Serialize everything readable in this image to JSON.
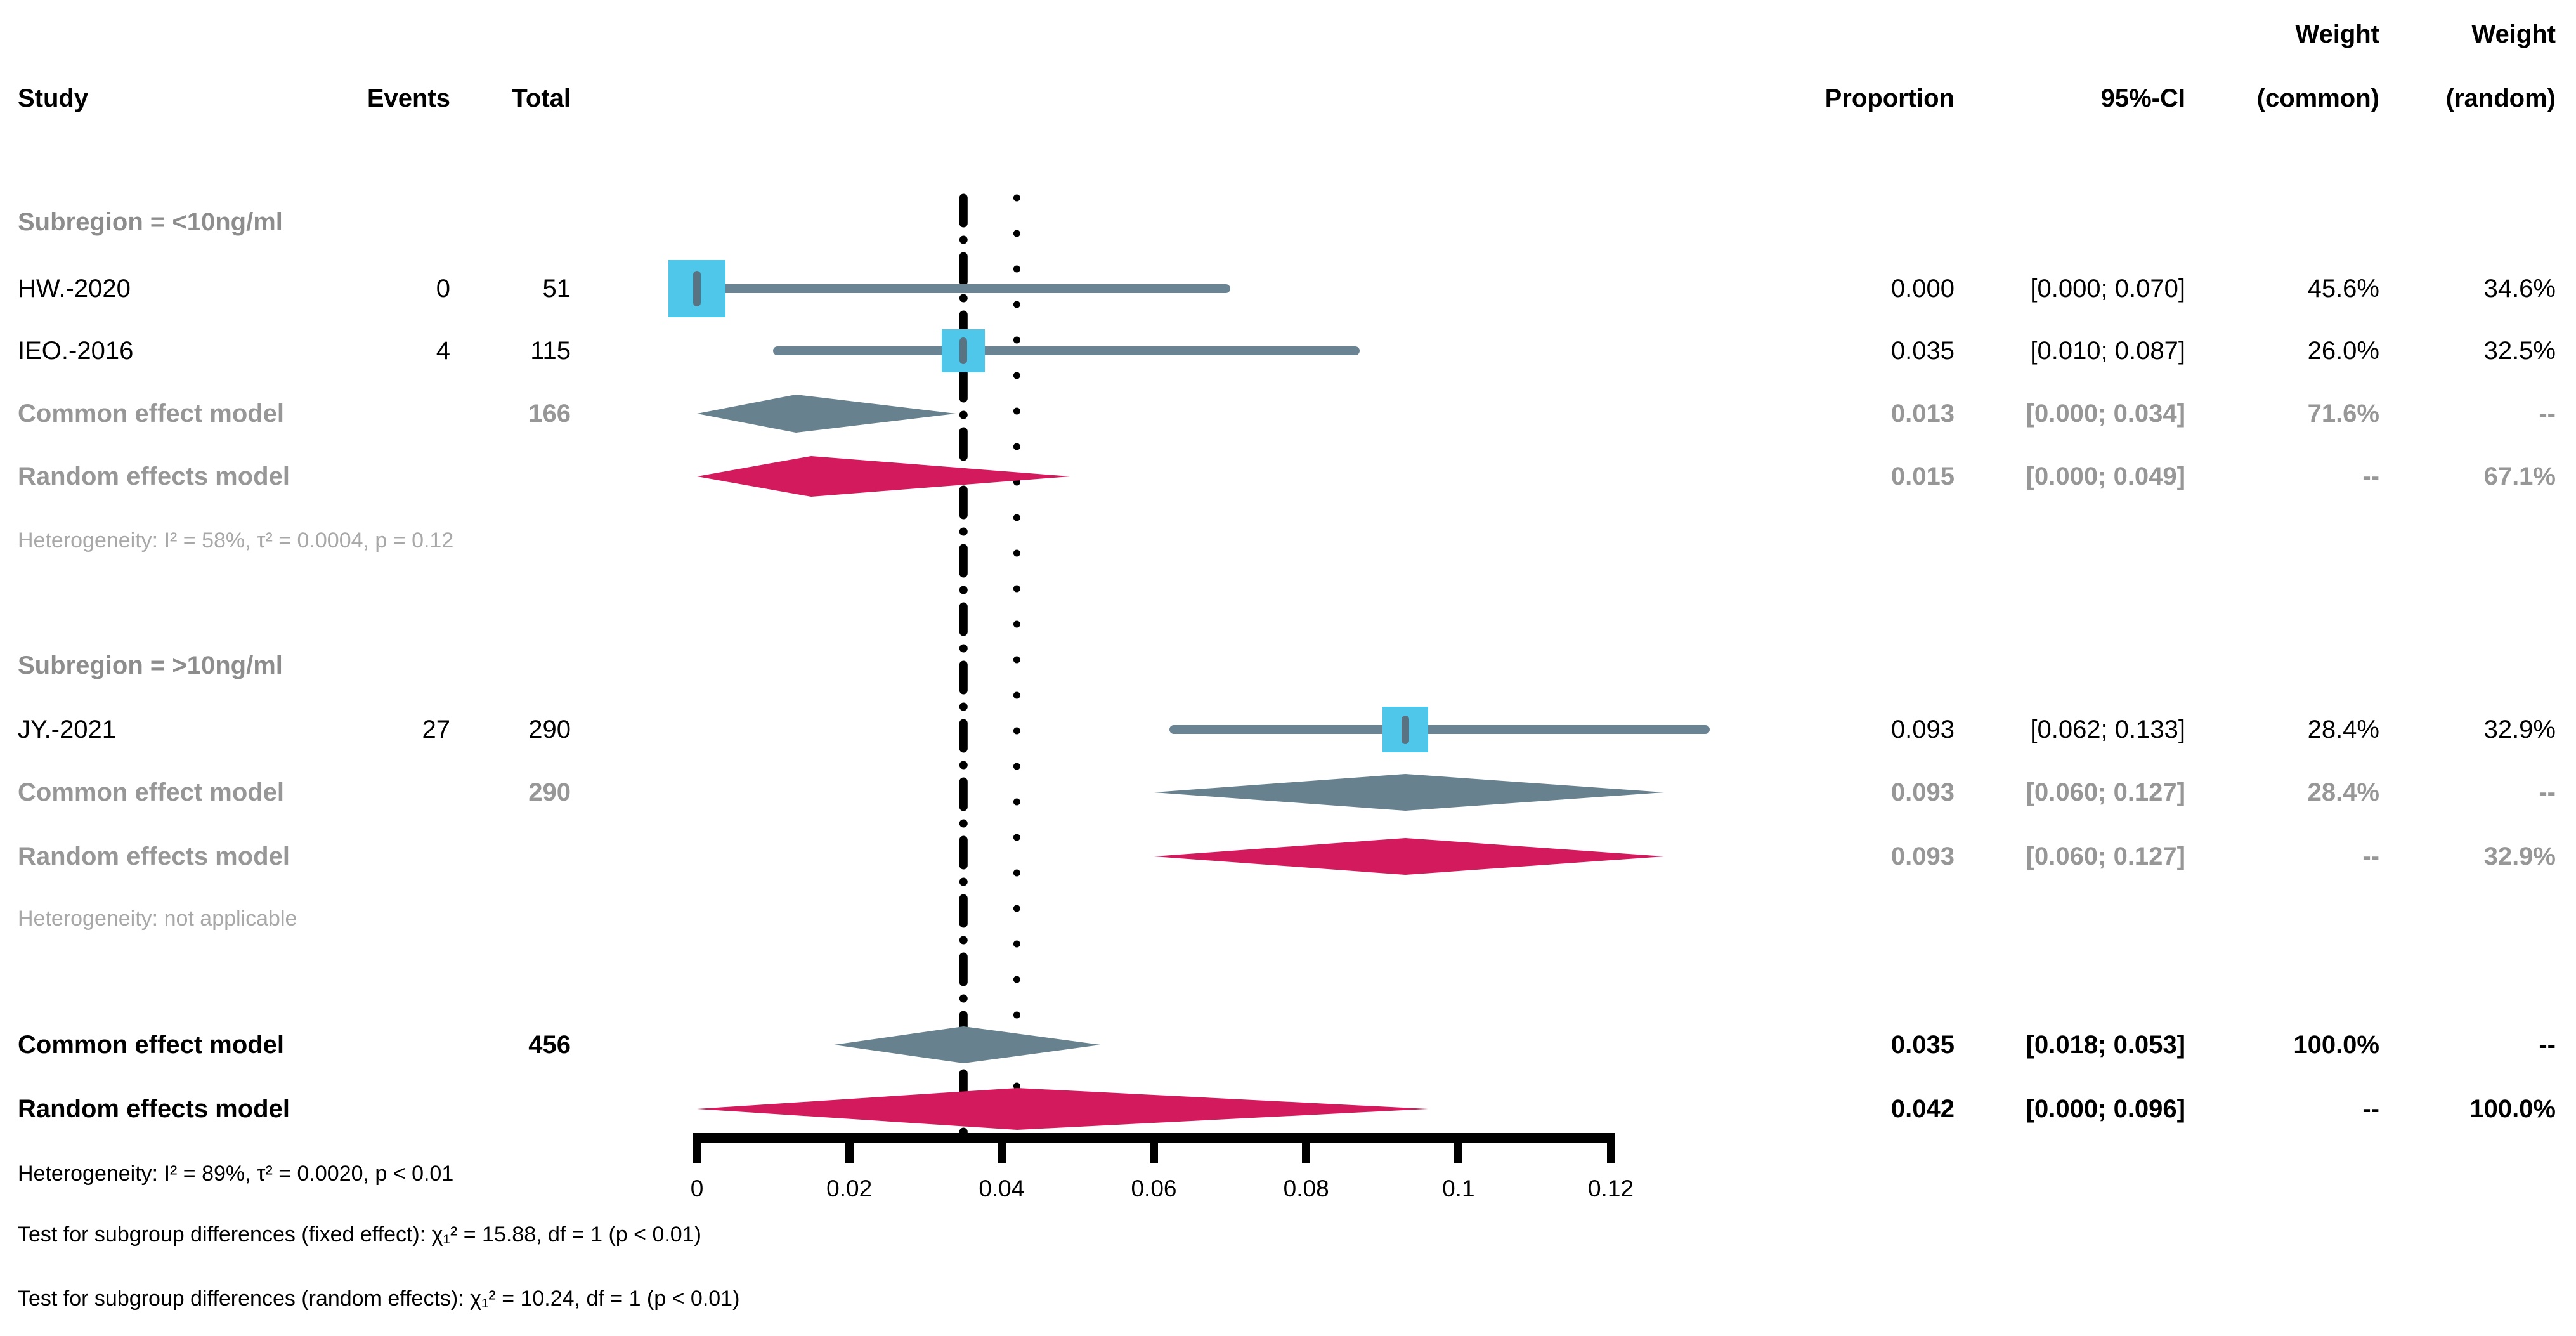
{
  "colors": {
    "study_marker": "#4ec7ea",
    "marker_tick": "#5a7383",
    "ci_line": "#6b8494",
    "common_diamond": "#68818f",
    "random_diamond": "#d21a5c",
    "reference_line": "#000000",
    "axis": "#000000",
    "text_black": "#000000",
    "text_gray_model": "#979797",
    "text_gray_subregion": "#8d8d8d",
    "text_gray_heterogeneity": "#a8a8a8"
  },
  "header": {
    "study": "Study",
    "events": "Events",
    "total": "Total",
    "proportion": "Proportion",
    "ci": "95%-CI",
    "weight_top": "Weight",
    "weight_common": "(common)",
    "weight_random": "(random)"
  },
  "chart_data": {
    "type": "forest",
    "x_axis": {
      "min": 0,
      "max": 0.12,
      "ticks": [
        {
          "v": 0,
          "label": "0"
        },
        {
          "v": 0.02,
          "label": "0.02"
        },
        {
          "v": 0.04,
          "label": "0.04"
        },
        {
          "v": 0.06,
          "label": "0.06"
        },
        {
          "v": 0.08,
          "label": "0.08"
        },
        {
          "v": 0.1,
          "label": "0.1"
        },
        {
          "v": 0.12,
          "label": "0.12"
        }
      ]
    },
    "reference_lines": [
      {
        "x": 0.035,
        "style": "dashdot"
      },
      {
        "x": 0.042,
        "style": "dotted"
      }
    ],
    "subgroups": [
      {
        "label": "Subregion = <10ng/ml",
        "studies": [
          {
            "name": "HW.-2020",
            "events": "0",
            "total": "51",
            "proportion": "0.000",
            "ci": "[0.000; 0.070]",
            "weight_common": "45.6%",
            "weight_random": "34.6%",
            "est": 0.0,
            "lower": 0.0,
            "upper": 0.07
          },
          {
            "name": "IEO.-2016",
            "events": "4",
            "total": "115",
            "proportion": "0.035",
            "ci": "[0.010; 0.087]",
            "weight_common": "26.0%",
            "weight_random": "32.5%",
            "est": 0.035,
            "lower": 0.01,
            "upper": 0.087
          }
        ],
        "common": {
          "name": "Common effect model",
          "total": "166",
          "proportion": "0.013",
          "ci": "[0.000; 0.034]",
          "weight_common": "71.6%",
          "weight_random": "--",
          "est": 0.013,
          "lower": 0.0,
          "upper": 0.034
        },
        "random": {
          "name": "Random effects model",
          "proportion": "0.015",
          "ci": "[0.000; 0.049]",
          "weight_common": "--",
          "weight_random": "67.1%",
          "est": 0.015,
          "lower": 0.0,
          "upper": 0.049
        },
        "heterogeneity": "Heterogeneity: I² = 58%, τ² = 0.0004, p = 0.12"
      },
      {
        "label": "Subregion = >10ng/ml",
        "studies": [
          {
            "name": "JY.-2021",
            "events": "27",
            "total": "290",
            "proportion": "0.093",
            "ci": "[0.062; 0.133]",
            "weight_common": "28.4%",
            "weight_random": "32.9%",
            "est": 0.093,
            "lower": 0.062,
            "upper": 0.133
          }
        ],
        "common": {
          "name": "Common effect model",
          "total": "290",
          "proportion": "0.093",
          "ci": "[0.060; 0.127]",
          "weight_common": "28.4%",
          "weight_random": "--",
          "est": 0.093,
          "lower": 0.06,
          "upper": 0.127
        },
        "random": {
          "name": "Random effects model",
          "proportion": "0.093",
          "ci": "[0.060; 0.127]",
          "weight_common": "--",
          "weight_random": "32.9%",
          "est": 0.093,
          "lower": 0.06,
          "upper": 0.127
        },
        "heterogeneity": "Heterogeneity: not applicable"
      }
    ],
    "overall": {
      "common": {
        "name": "Common effect model",
        "total": "456",
        "proportion": "0.035",
        "ci": "[0.018; 0.053]",
        "weight_common": "100.0%",
        "weight_random": "--",
        "est": 0.035,
        "lower": 0.018,
        "upper": 0.053
      },
      "random": {
        "name": "Random effects model",
        "proportion": "0.042",
        "ci": "[0.000; 0.096]",
        "weight_common": "--",
        "weight_random": "100.0%",
        "est": 0.042,
        "lower": 0.0,
        "upper": 0.096
      },
      "heterogeneity": "Heterogeneity: I² = 89%, τ² = 0.0020, p < 0.01",
      "tests": {
        "fixed": "Test for subgroup differences (fixed effect): χ₁² = 15.88, df = 1 (p < 0.01)",
        "random": "Test for subgroup differences (random effects): χ₁² = 10.24, df = 1 (p < 0.01)"
      }
    }
  }
}
